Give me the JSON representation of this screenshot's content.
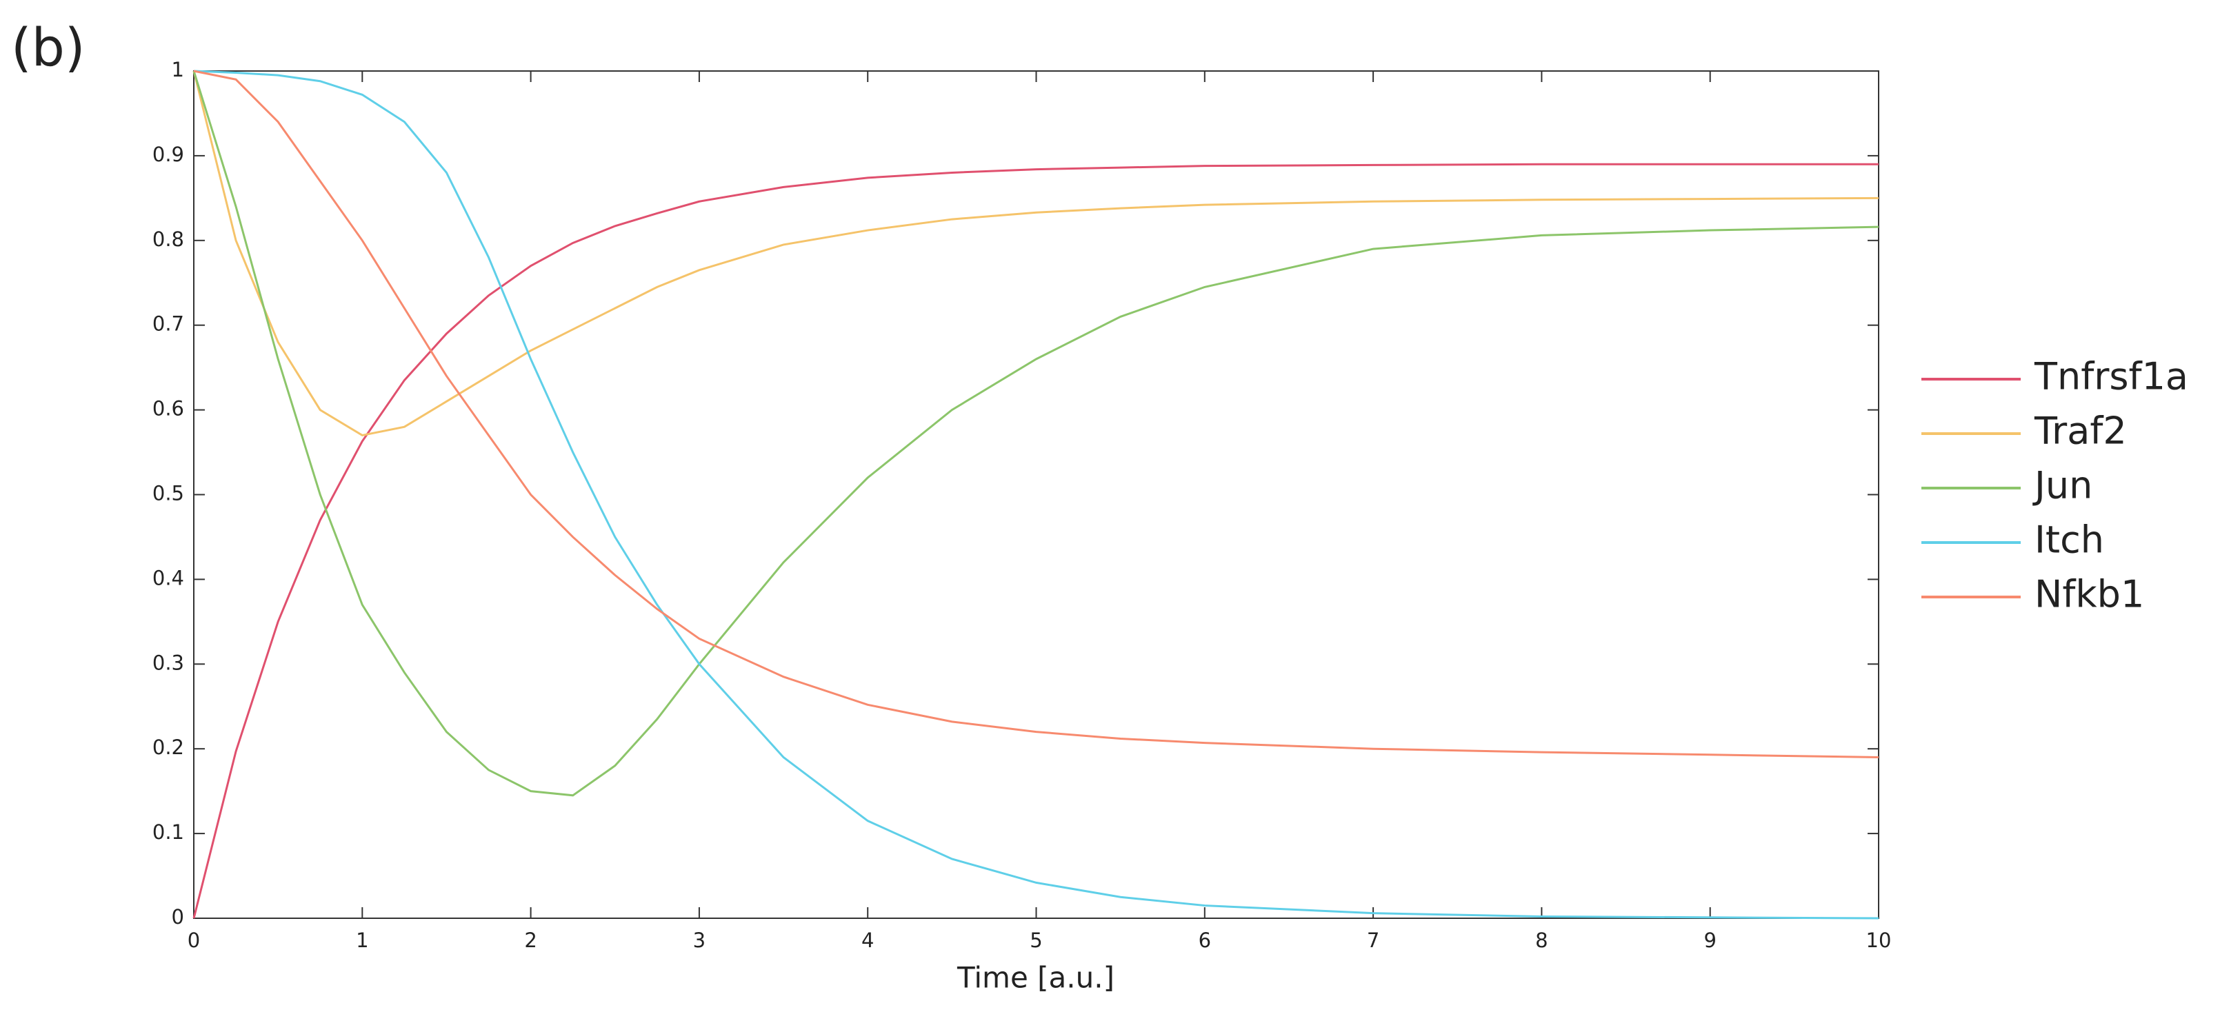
{
  "chart_data": {
    "type": "line",
    "panel_label": "(b)",
    "x_label": "Time [a.u.]",
    "x": [
      0,
      0.25,
      0.5,
      0.75,
      1,
      1.25,
      1.5,
      1.75,
      2,
      2.25,
      2.5,
      2.75,
      3,
      3.5,
      4,
      4.5,
      5,
      5.5,
      6,
      7,
      8,
      9,
      10
    ],
    "series": [
      {
        "name": "Tnfrsf1a",
        "color": "#e0506e",
        "values": [
          0,
          0.197,
          0.35,
          0.47,
          0.563,
          0.635,
          0.69,
          0.735,
          0.77,
          0.797,
          0.817,
          0.832,
          0.846,
          0.863,
          0.874,
          0.88,
          0.884,
          0.886,
          0.888,
          0.889,
          0.89,
          0.89,
          0.89
        ]
      },
      {
        "name": "Traf2",
        "color": "#f5c36a",
        "values": [
          1,
          0.8,
          0.68,
          0.6,
          0.57,
          0.58,
          0.61,
          0.64,
          0.67,
          0.695,
          0.72,
          0.745,
          0.765,
          0.795,
          0.812,
          0.825,
          0.833,
          0.838,
          0.842,
          0.846,
          0.848,
          0.849,
          0.85
        ]
      },
      {
        "name": "Jun",
        "color": "#8cc56a",
        "values": [
          1,
          0.84,
          0.66,
          0.5,
          0.37,
          0.29,
          0.22,
          0.175,
          0.15,
          0.145,
          0.18,
          0.235,
          0.3,
          0.42,
          0.52,
          0.6,
          0.66,
          0.71,
          0.745,
          0.79,
          0.806,
          0.812,
          0.816
        ]
      },
      {
        "name": "Itch",
        "color": "#5fcfe8",
        "values": [
          1,
          0.998,
          0.995,
          0.988,
          0.972,
          0.94,
          0.88,
          0.78,
          0.66,
          0.55,
          0.45,
          0.37,
          0.3,
          0.19,
          0.115,
          0.07,
          0.042,
          0.025,
          0.015,
          0.006,
          0.002,
          0.001,
          0
        ]
      },
      {
        "name": "Nfkb1",
        "color": "#f78a6e",
        "values": [
          1,
          0.99,
          0.94,
          0.87,
          0.8,
          0.72,
          0.64,
          0.57,
          0.5,
          0.45,
          0.405,
          0.365,
          0.33,
          0.285,
          0.252,
          0.232,
          0.22,
          0.212,
          0.207,
          0.2,
          0.196,
          0.193,
          0.19
        ]
      }
    ],
    "xlim": [
      0,
      10
    ],
    "xticks": [
      0,
      1,
      2,
      3,
      4,
      5,
      6,
      7,
      8,
      9,
      10
    ],
    "ylim": [
      0,
      1
    ],
    "yticks": [
      0,
      0.1,
      0.2,
      0.3,
      0.4,
      0.5,
      0.6,
      0.7,
      0.8,
      0.9,
      1
    ],
    "legend": "right"
  }
}
